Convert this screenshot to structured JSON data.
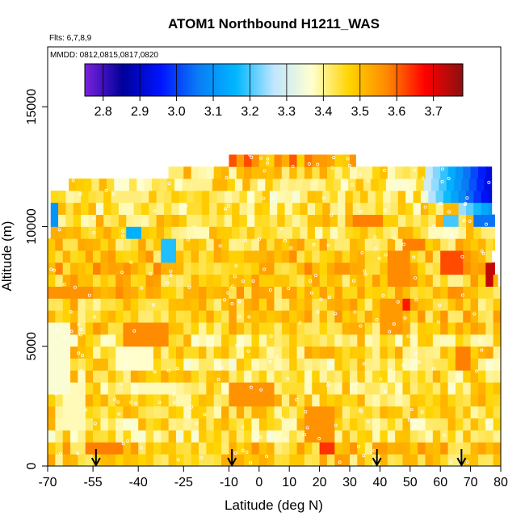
{
  "chart_data": {
    "type": "heatmap",
    "title": "ATOM1 Northbound H1211_WAS",
    "annotations": [
      "Flts: 6,7,8,9",
      "MMDD: 0812,0815,0817,0820"
    ],
    "xlabel": "Latitude (deg N)",
    "ylabel": "Altitude (m)",
    "xlim": [
      -70,
      80
    ],
    "ylim": [
      0,
      17500
    ],
    "xticks": [
      -70,
      -55,
      -40,
      -25,
      -10,
      0,
      10,
      20,
      30,
      40,
      50,
      60,
      70,
      80
    ],
    "xtick_labels": [
      "-70",
      "-55",
      "-40",
      "-25",
      "-10",
      "0",
      "10",
      "20",
      "30",
      "40",
      "50",
      "60",
      "70",
      "80"
    ],
    "yticks": [
      0,
      5000,
      10000,
      15000
    ],
    "ytick_labels": [
      "0",
      "5000",
      "10000",
      "15000"
    ],
    "colorbar": {
      "min": 2.75,
      "max": 3.78,
      "ticks": [
        2.8,
        2.9,
        3.0,
        3.1,
        3.2,
        3.3,
        3.4,
        3.5,
        3.6,
        3.7
      ],
      "tick_labels": [
        "2.8",
        "2.9",
        "3.0",
        "3.1",
        "3.2",
        "3.3",
        "3.4",
        "3.5",
        "3.6",
        "3.7"
      ],
      "colors": [
        "#7b22dd",
        "#00009a",
        "#0014ff",
        "#0a7cf5",
        "#00b7ff",
        "#bfe6ff",
        "#ffffd0",
        "#ffd400",
        "#ff8800",
        "#ff0000",
        "#8b1010"
      ]
    },
    "profile_markers_lat": [
      -54,
      -9,
      39,
      67
    ],
    "bands": [
      {
        "alt": [
          0,
          500
        ],
        "lat": [
          -70,
          80
        ],
        "base": 3.47
      },
      {
        "alt": [
          500,
          1000
        ],
        "lat": [
          -70,
          80
        ],
        "base": 3.48
      },
      {
        "alt": [
          1000,
          1500
        ],
        "lat": [
          -70,
          80
        ],
        "base": 3.43
      },
      {
        "alt": [
          1500,
          2000
        ],
        "lat": [
          -70,
          80
        ],
        "base": 3.44
      },
      {
        "alt": [
          2000,
          2500
        ],
        "lat": [
          -70,
          80
        ],
        "base": 3.45
      },
      {
        "alt": [
          2500,
          3000
        ],
        "lat": [
          -70,
          80
        ],
        "base": 3.46
      },
      {
        "alt": [
          3000,
          3500
        ],
        "lat": [
          -70,
          80
        ],
        "base": 3.44
      },
      {
        "alt": [
          3500,
          4000
        ],
        "lat": [
          -70,
          80
        ],
        "base": 3.45
      },
      {
        "alt": [
          4000,
          4500
        ],
        "lat": [
          -70,
          80
        ],
        "base": 3.43
      },
      {
        "alt": [
          4500,
          5000
        ],
        "lat": [
          -70,
          80
        ],
        "base": 3.46
      },
      {
        "alt": [
          5000,
          5500
        ],
        "lat": [
          -70,
          80
        ],
        "base": 3.44
      },
      {
        "alt": [
          5500,
          6000
        ],
        "lat": [
          -70,
          80
        ],
        "base": 3.47
      },
      {
        "alt": [
          6000,
          6500
        ],
        "lat": [
          -70,
          80
        ],
        "base": 3.48
      },
      {
        "alt": [
          6500,
          7000
        ],
        "lat": [
          -70,
          80
        ],
        "base": 3.47
      },
      {
        "alt": [
          7000,
          7500
        ],
        "lat": [
          -70,
          80
        ],
        "base": 3.49
      },
      {
        "alt": [
          7500,
          8000
        ],
        "lat": [
          -70,
          79
        ],
        "base": 3.48
      },
      {
        "alt": [
          8000,
          8500
        ],
        "lat": [
          -70,
          78
        ],
        "base": 3.5
      },
      {
        "alt": [
          8500,
          9000
        ],
        "lat": [
          -70,
          77
        ],
        "base": 3.49
      },
      {
        "alt": [
          9000,
          9500
        ],
        "lat": [
          -70,
          78
        ],
        "base": 3.47
      },
      {
        "alt": [
          9500,
          10000
        ],
        "lat": [
          -69,
          78
        ],
        "base": 3.45
      },
      {
        "alt": [
          10000,
          10500
        ],
        "lat": [
          -69,
          78
        ],
        "base": 3.45
      },
      {
        "alt": [
          10500,
          11000
        ],
        "lat": [
          -69,
          77
        ],
        "base": 3.44
      },
      {
        "alt": [
          11000,
          11500
        ],
        "lat": [
          -69,
          77
        ],
        "base": 3.43
      },
      {
        "alt": [
          11500,
          12000
        ],
        "lat": [
          -63,
          77
        ],
        "base": 3.44
      },
      {
        "alt": [
          12000,
          12500
        ],
        "lat": [
          -30,
          77
        ],
        "base": 3.45
      },
      {
        "alt": [
          12500,
          13000
        ],
        "lat": [
          -10,
          32
        ],
        "base": 3.55
      }
    ],
    "regions": [
      {
        "lat": [
          -70,
          -62
        ],
        "alt": [
          3000,
          6000
        ],
        "value": 3.36
      },
      {
        "lat": [
          -65,
          -58
        ],
        "alt": [
          1500,
          3500
        ],
        "value": 3.38
      },
      {
        "lat": [
          -48,
          -35
        ],
        "alt": [
          4000,
          5000
        ],
        "value": 3.37
      },
      {
        "lat": [
          -40,
          -28
        ],
        "alt": [
          3000,
          3500
        ],
        "value": 3.38
      },
      {
        "lat": [
          -58,
          -45
        ],
        "alt": [
          500,
          1000
        ],
        "value": 3.58
      },
      {
        "lat": [
          -45,
          -30
        ],
        "alt": [
          5000,
          6000
        ],
        "value": 3.57
      },
      {
        "lat": [
          -70,
          -55
        ],
        "alt": [
          7000,
          7500
        ],
        "value": 3.56
      },
      {
        "lat": [
          -10,
          5
        ],
        "alt": [
          2500,
          3500
        ],
        "value": 3.56
      },
      {
        "lat": [
          15,
          25
        ],
        "alt": [
          1000,
          2500
        ],
        "value": 3.56
      },
      {
        "lat": [
          20,
          25
        ],
        "alt": [
          500,
          1000
        ],
        "value": 3.64
      },
      {
        "lat": [
          40,
          48
        ],
        "alt": [
          5500,
          7000
        ],
        "value": 3.55
      },
      {
        "lat": [
          42,
          50
        ],
        "alt": [
          7500,
          9000
        ],
        "value": 3.57
      },
      {
        "lat": [
          43,
          50
        ],
        "alt": [
          6500,
          7000
        ],
        "value": 3.66
      },
      {
        "lat": [
          48,
          55
        ],
        "alt": [
          9000,
          9500
        ],
        "value": 3.58
      },
      {
        "lat": [
          30,
          40
        ],
        "alt": [
          10000,
          10500
        ],
        "value": 3.58
      },
      {
        "lat": [
          60,
          67
        ],
        "alt": [
          8000,
          9000
        ],
        "value": 3.62
      },
      {
        "lat": [
          65,
          70
        ],
        "alt": [
          4000,
          5000
        ],
        "value": 3.58
      },
      {
        "lat": [
          75,
          78
        ],
        "alt": [
          7500,
          8500
        ],
        "value": 3.73
      },
      {
        "lat": [
          -45,
          -40
        ],
        "alt": [
          9500,
          10000
        ],
        "value": 3.15
      },
      {
        "lat": [
          -32,
          -28
        ],
        "alt": [
          8500,
          9500
        ],
        "value": 3.18
      },
      {
        "lat": [
          -70,
          -67
        ],
        "alt": [
          10000,
          11000
        ],
        "value": 3.1
      },
      {
        "lat": [
          60,
          65
        ],
        "alt": [
          10000,
          10500
        ],
        "value": 3.2
      },
      {
        "lat": [
          -25,
          -15
        ],
        "alt": [
          11500,
          12000
        ],
        "value": 3.4
      },
      {
        "lat": [
          -50,
          -40
        ],
        "alt": [
          11000,
          11500
        ],
        "value": 3.41
      }
    ]
  }
}
